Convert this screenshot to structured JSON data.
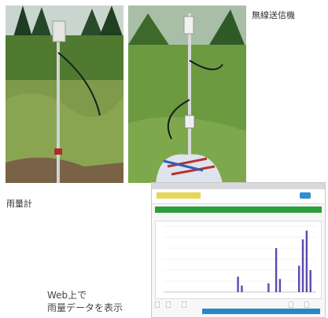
{
  "captions": {
    "transmitter": "無線送信機",
    "rain_gauge": "雨量計",
    "web_line1": "Web上で",
    "web_line2": "雨量データを表示"
  },
  "webapp": {
    "chart_data": {
      "type": "bar",
      "x": [
        1,
        2,
        3,
        4,
        5,
        6,
        7,
        8,
        9,
        10,
        11,
        12,
        13,
        14,
        15,
        16,
        17,
        18,
        19,
        20,
        21,
        22,
        23,
        24,
        25,
        26,
        27,
        28,
        29,
        30,
        31,
        32,
        33,
        34,
        35,
        36,
        37,
        38,
        39,
        40
      ],
      "values": [
        0,
        0,
        0,
        0,
        0,
        0,
        0,
        0,
        0,
        0,
        0,
        0,
        0,
        0,
        0,
        0,
        0,
        0,
        0,
        0.35,
        0.15,
        0,
        0,
        0,
        0,
        0,
        0,
        0.2,
        0,
        1.0,
        0.3,
        0,
        0,
        0,
        0,
        0.6,
        1.2,
        1.4,
        0.5,
        0
      ],
      "color": "#5a4ab0"
    }
  }
}
